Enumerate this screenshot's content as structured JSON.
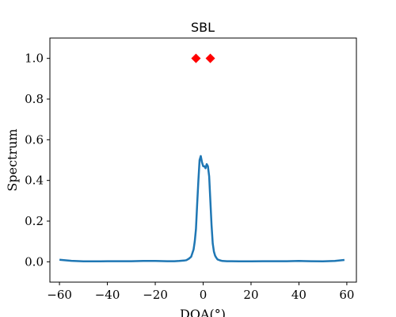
{
  "chart_data": {
    "type": "line",
    "title": "SBL",
    "xlabel": "DOA(°)",
    "ylabel": "Spectrum",
    "xlim": [
      -64,
      64
    ],
    "ylim": [
      -0.1,
      1.1
    ],
    "xticks": [
      -60,
      -40,
      -20,
      0,
      20,
      40,
      60
    ],
    "xtick_labels": [
      "−60",
      "−40",
      "−20",
      "0",
      "20",
      "40",
      "60"
    ],
    "yticks": [
      0.0,
      0.2,
      0.4,
      0.6,
      0.8,
      1.0
    ],
    "ytick_labels": [
      "0.0",
      "0.2",
      "0.4",
      "0.6",
      "0.8",
      "1.0"
    ],
    "grid": false,
    "series": [
      {
        "kind": "line",
        "color": "#1f77b4",
        "x": [
          -60,
          -55,
          -50,
          -45,
          -40,
          -35,
          -30,
          -25,
          -20,
          -15,
          -12,
          -10,
          -8,
          -7,
          -6,
          -5,
          -4,
          -3.5,
          -3,
          -2.5,
          -2,
          -1.5,
          -1,
          -0.5,
          0,
          0.5,
          1,
          1.5,
          2,
          2.5,
          3,
          3.5,
          4,
          4.5,
          5,
          5.5,
          6,
          7,
          8,
          10,
          12,
          15,
          20,
          25,
          30,
          35,
          40,
          45,
          50,
          55,
          59
        ],
        "y": [
          0.01,
          0.005,
          0.002,
          0.002,
          0.003,
          0.003,
          0.003,
          0.004,
          0.004,
          0.003,
          0.003,
          0.004,
          0.006,
          0.008,
          0.015,
          0.025,
          0.06,
          0.1,
          0.16,
          0.28,
          0.4,
          0.5,
          0.52,
          0.49,
          0.47,
          0.47,
          0.46,
          0.48,
          0.47,
          0.42,
          0.3,
          0.18,
          0.09,
          0.05,
          0.03,
          0.02,
          0.012,
          0.007,
          0.004,
          0.003,
          0.003,
          0.002,
          0.002,
          0.003,
          0.003,
          0.003,
          0.004,
          0.003,
          0.002,
          0.004,
          0.009
        ]
      },
      {
        "kind": "markers",
        "marker": "diamond",
        "color": "#ff0000",
        "x": [
          -3,
          3
        ],
        "y": [
          1.0,
          1.0
        ]
      }
    ]
  }
}
